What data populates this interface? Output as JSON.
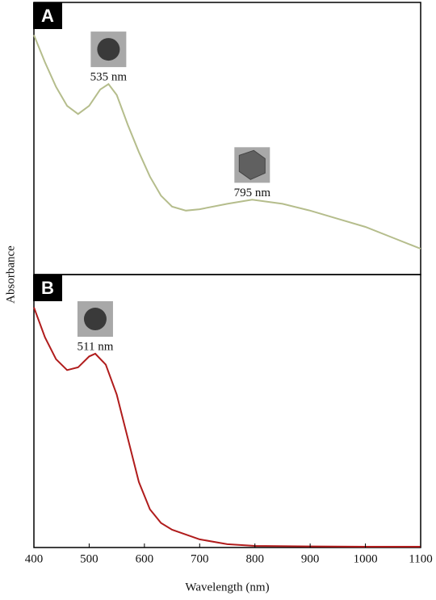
{
  "chart_data": [
    {
      "type": "line",
      "label": "A",
      "ylabel": "Absorbance",
      "x": [
        400,
        420,
        440,
        460,
        480,
        500,
        520,
        535,
        550,
        570,
        590,
        610,
        630,
        650,
        675,
        700,
        750,
        795,
        850,
        900,
        950,
        1000,
        1050,
        1100
      ],
      "series": [
        {
          "color": "#b5bd8c",
          "values": [
            0.88,
            0.78,
            0.69,
            0.62,
            0.59,
            0.62,
            0.68,
            0.7,
            0.66,
            0.55,
            0.45,
            0.36,
            0.29,
            0.25,
            0.235,
            0.24,
            0.26,
            0.275,
            0.26,
            0.235,
            0.205,
            0.175,
            0.135,
            0.095
          ]
        }
      ],
      "annotations": [
        {
          "text": "535 nm",
          "x": 535
        },
        {
          "text": "795 nm",
          "x": 795
        }
      ],
      "xlim": [
        400,
        1100
      ],
      "ylim": [
        0,
        1
      ]
    },
    {
      "type": "line",
      "label": "B",
      "xlabel": "Wavelength (nm)",
      "x": [
        400,
        420,
        440,
        460,
        480,
        500,
        511,
        530,
        550,
        570,
        590,
        610,
        630,
        650,
        700,
        750,
        800,
        900,
        1000,
        1100
      ],
      "series": [
        {
          "color": "#b01c1c",
          "values": [
            0.88,
            0.77,
            0.69,
            0.65,
            0.66,
            0.7,
            0.71,
            0.67,
            0.56,
            0.4,
            0.24,
            0.14,
            0.09,
            0.065,
            0.03,
            0.012,
            0.006,
            0.004,
            0.003,
            0.003
          ]
        }
      ],
      "annotations": [
        {
          "text": "511 nm",
          "x": 511
        }
      ],
      "xlim": [
        400,
        1100
      ],
      "ylim": [
        0,
        1
      ],
      "xticks": [
        400,
        500,
        600,
        700,
        800,
        900,
        1000,
        1100
      ]
    }
  ]
}
